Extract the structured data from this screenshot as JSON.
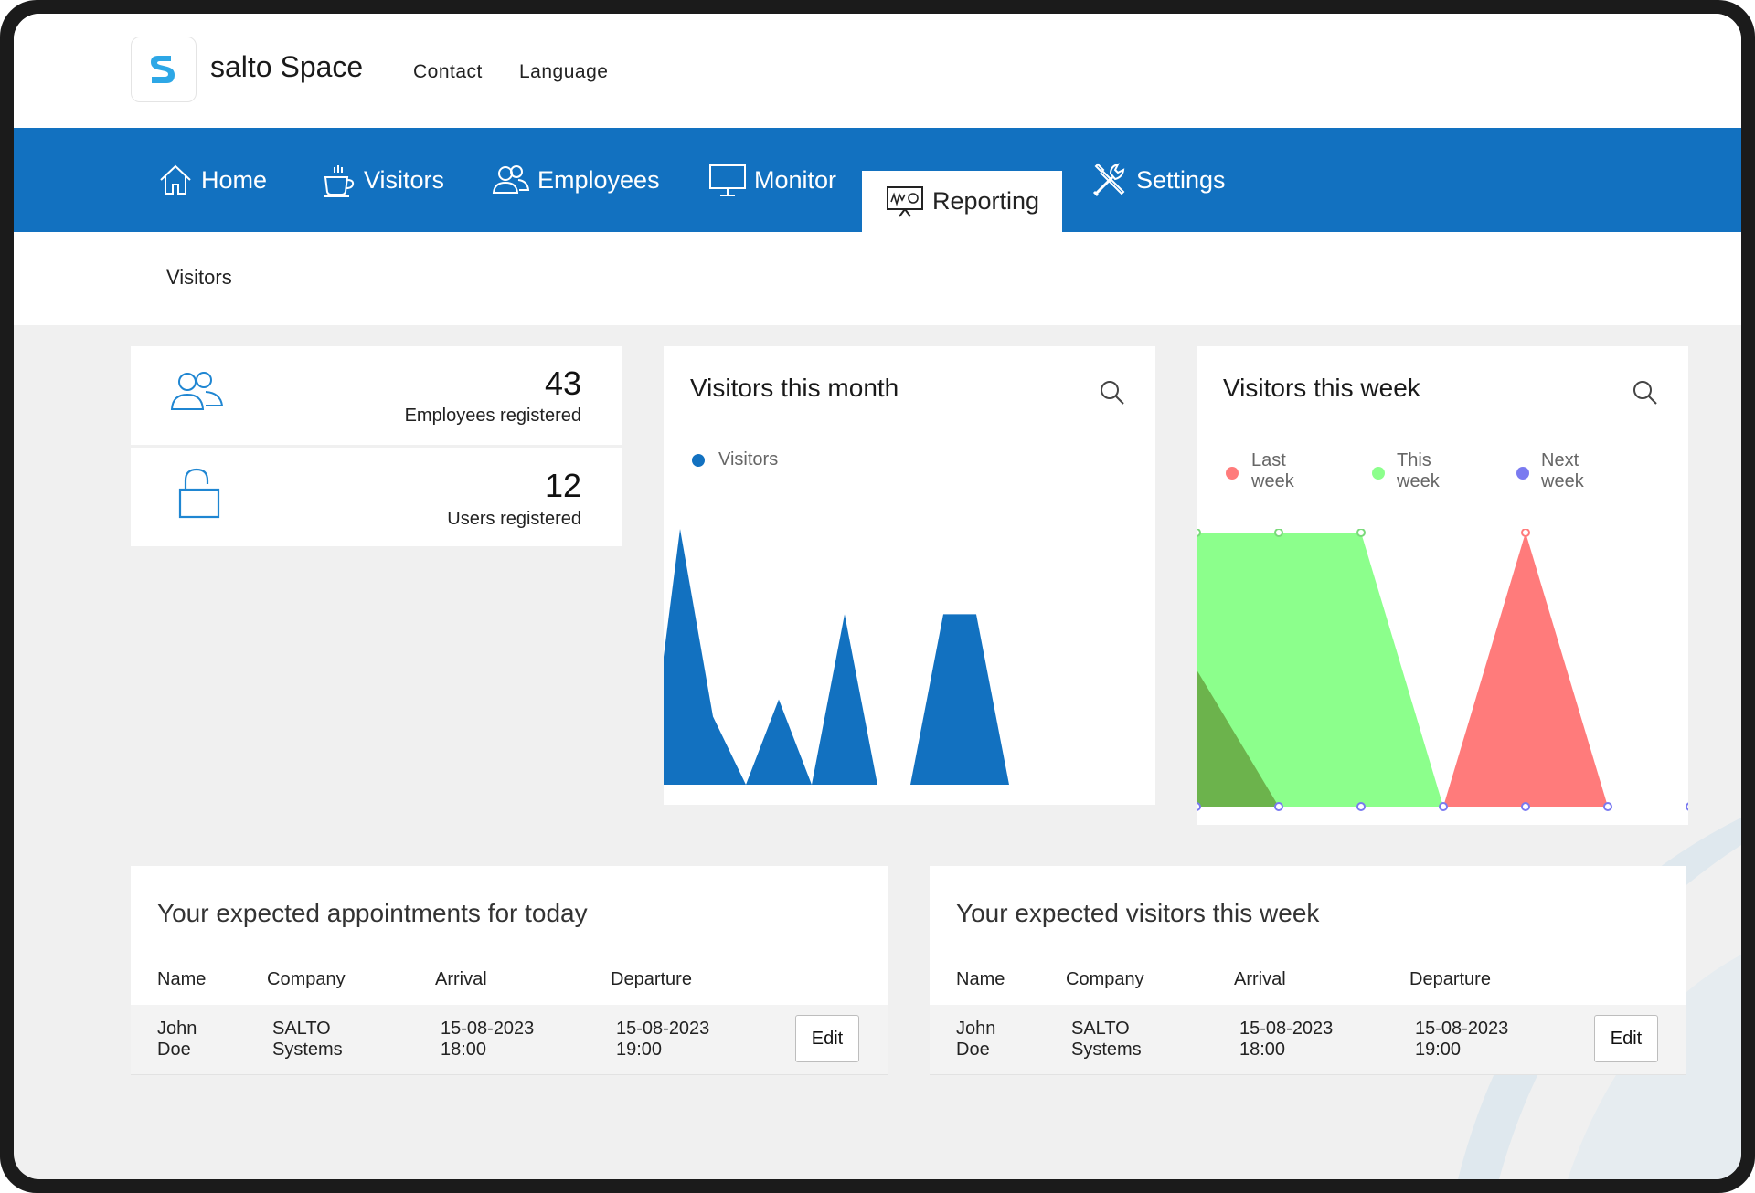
{
  "brand": {
    "name": "salto Space"
  },
  "top_links": [
    "Contact",
    "Language"
  ],
  "nav": {
    "home": "Home",
    "visitors": "Visitors",
    "employees": "Employees",
    "monitor": "Monitor",
    "reporting": "Reporting",
    "settings": "Settings",
    "active": "Reporting"
  },
  "breadcrumb": "Visitors",
  "stats": [
    {
      "value": "43",
      "label": "Employees registered",
      "icon": "users-icon"
    },
    {
      "value": "12",
      "label": "Users registered",
      "icon": "unlock-icon"
    }
  ],
  "month_card": {
    "title": "Visitors this month",
    "legend": "Visitors"
  },
  "week_card": {
    "title": "Visitors this week",
    "legend": [
      {
        "line1": "Last",
        "line2": "week",
        "color": "#ff7b7b"
      },
      {
        "line1": "This",
        "line2": "week",
        "color": "#8cff8c"
      },
      {
        "line1": "Next",
        "line2": "week",
        "color": "#7a7af0"
      }
    ]
  },
  "chart_data": [
    {
      "type": "area",
      "title": "Visitors this month",
      "series": [
        {
          "name": "Visitors",
          "color": "#1271c0",
          "values": [
            0,
            3,
            0.8,
            0,
            1,
            0,
            2,
            0,
            0,
            2,
            2,
            0,
            0,
            0,
            0,
            0,
            0,
            0
          ]
        }
      ]
    },
    {
      "type": "area",
      "title": "Visitors this week",
      "series": [
        {
          "name": "Last week",
          "color": "#ff7b7b",
          "values": [
            0,
            0,
            0,
            0,
            1,
            0,
            0
          ]
        },
        {
          "name": "This week",
          "color": "#8cff8c",
          "values": [
            1,
            1,
            1,
            0,
            0,
            0,
            0
          ]
        },
        {
          "name": "Next week",
          "color": "#7a7af0",
          "values": [
            0,
            0,
            0,
            0,
            0,
            0,
            0
          ]
        }
      ],
      "overlap_region_color": "#6cb34c",
      "overlap_values": [
        0.5,
        0,
        0,
        0,
        0,
        0,
        0
      ]
    }
  ],
  "appointments_today": {
    "title": "Your expected appointments for today",
    "columns": [
      "Name",
      "Company",
      "Arrival",
      "Departure"
    ],
    "rows": [
      {
        "name": [
          "John",
          "Doe"
        ],
        "company": [
          "SALTO",
          "Systems"
        ],
        "arrival": [
          "15-08-2023",
          "18:00"
        ],
        "departure": [
          "15-08-2023",
          "19:00"
        ],
        "action": "Edit"
      }
    ]
  },
  "visitors_week": {
    "title": "Your expected visitors this week",
    "columns": [
      "Name",
      "Company",
      "Arrival",
      "Departure"
    ],
    "rows": [
      {
        "name": [
          "John",
          "Doe"
        ],
        "company": [
          "SALTO",
          "Systems"
        ],
        "arrival": [
          "15-08-2023",
          "18:00"
        ],
        "departure": [
          "15-08-2023",
          "19:00"
        ],
        "action": "Edit"
      }
    ]
  }
}
